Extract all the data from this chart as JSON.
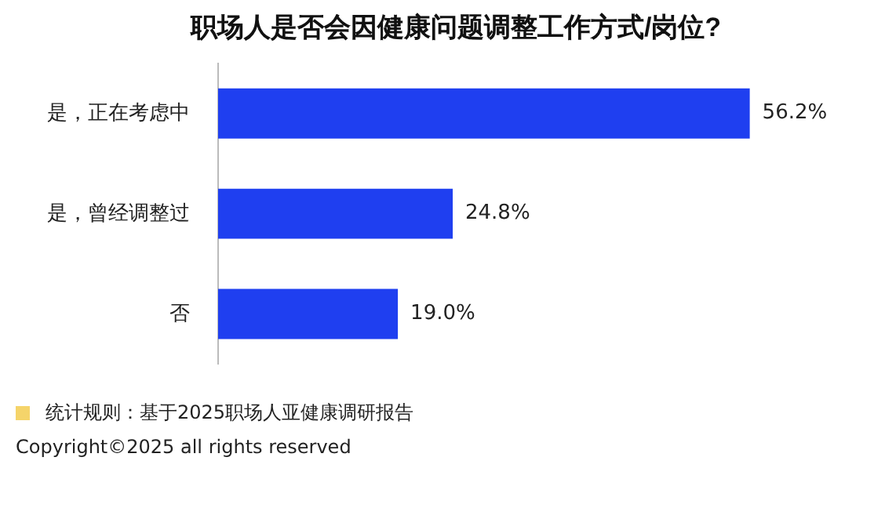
{
  "chart_data": {
    "type": "bar",
    "orientation": "horizontal",
    "title": "职场人是否会因健康问题调整工作方式/岗位?",
    "categories": [
      "是，正在考虑中",
      "是，曾经调整过",
      "否"
    ],
    "values": [
      56.2,
      24.8,
      19.0
    ],
    "value_labels": [
      "56.2%",
      "24.8%",
      "19.0%"
    ],
    "color": "#1f3ff0",
    "legend": false,
    "tick_labels": "y",
    "annotations": [
      "统计规则：基于2025职场人亚健康调研报告",
      "Copyright©2025 all rights reserved"
    ]
  }
}
